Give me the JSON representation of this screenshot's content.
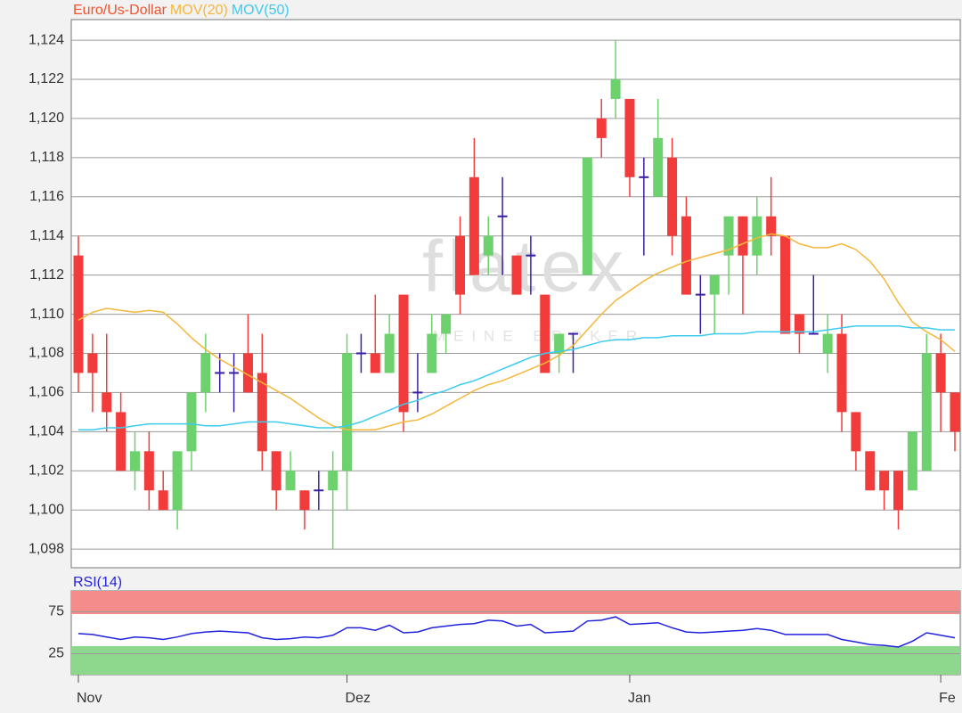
{
  "chart_data": [
    {
      "type": "candlestick",
      "name": "Euro/Us-Dollar",
      "name_color": "#f0522e",
      "watermark": "flatex",
      "watermark_sub": "MEINE BROKER",
      "categories": [
        "Nov",
        null,
        null,
        null,
        null,
        null,
        null,
        null,
        null,
        null,
        null,
        null,
        null,
        null,
        null,
        null,
        null,
        null,
        null,
        "Dez",
        null,
        null,
        null,
        null,
        null,
        null,
        null,
        null,
        null,
        null,
        null,
        null,
        null,
        null,
        null,
        null,
        null,
        null,
        null,
        "Jan",
        null,
        null,
        null,
        null,
        null,
        null,
        null,
        null,
        null,
        null,
        null,
        null,
        null,
        null,
        null,
        null,
        null,
        null,
        null,
        null,
        null,
        "Fe",
        null
      ],
      "open": [
        1.113,
        1.108,
        1.106,
        1.105,
        1.102,
        1.103,
        1.101,
        1.1,
        1.103,
        1.106,
        1.107,
        1.107,
        1.108,
        1.107,
        1.103,
        1.101,
        1.101,
        1.101,
        1.101,
        1.102,
        1.108,
        1.108,
        1.107,
        1.111,
        1.106,
        1.107,
        1.109,
        1.114,
        1.117,
        1.113,
        1.115,
        1.113,
        1.113,
        1.111,
        1.108,
        1.109,
        1.112,
        1.12,
        1.121,
        1.121,
        1.117,
        1.116,
        1.118,
        1.115,
        1.111,
        1.111,
        1.113,
        1.115,
        1.113,
        1.115,
        1.114,
        1.11,
        1.109,
        1.108,
        1.109,
        1.105,
        1.103,
        1.102,
        1.102,
        1.101,
        1.102,
        1.108,
        1.106
      ],
      "high": [
        1.114,
        1.109,
        1.109,
        1.106,
        1.104,
        1.104,
        1.102,
        1.103,
        1.106,
        1.109,
        1.108,
        1.108,
        1.11,
        1.109,
        1.103,
        1.103,
        1.101,
        1.102,
        1.103,
        1.109,
        1.109,
        1.111,
        1.11,
        1.111,
        1.108,
        1.11,
        1.11,
        1.115,
        1.119,
        1.115,
        1.117,
        1.113,
        1.114,
        1.111,
        1.109,
        1.109,
        1.118,
        1.121,
        1.124,
        1.121,
        1.118,
        1.121,
        1.119,
        1.116,
        1.112,
        1.112,
        1.115,
        1.115,
        1.116,
        1.117,
        1.114,
        1.11,
        1.112,
        1.11,
        1.11,
        1.105,
        1.103,
        1.102,
        1.102,
        1.104,
        1.109,
        1.109,
        1.106
      ],
      "low": [
        1.106,
        1.105,
        1.104,
        1.102,
        1.101,
        1.1,
        1.1,
        1.099,
        1.102,
        1.105,
        1.106,
        1.105,
        1.106,
        1.102,
        1.1,
        1.101,
        1.099,
        1.1,
        1.098,
        1.1,
        1.107,
        1.107,
        1.107,
        1.104,
        1.105,
        1.107,
        1.108,
        1.11,
        1.112,
        1.112,
        1.112,
        1.111,
        1.111,
        1.107,
        1.107,
        1.107,
        1.112,
        1.118,
        1.12,
        1.116,
        1.113,
        1.116,
        1.113,
        1.111,
        1.109,
        1.109,
        1.111,
        1.11,
        1.112,
        1.113,
        1.109,
        1.108,
        1.109,
        1.107,
        1.104,
        1.102,
        1.101,
        1.1,
        1.099,
        1.101,
        1.102,
        1.104,
        1.103
      ],
      "close": [
        1.107,
        1.107,
        1.105,
        1.102,
        1.103,
        1.101,
        1.1,
        1.103,
        1.106,
        1.108,
        1.107,
        1.107,
        1.106,
        1.103,
        1.101,
        1.102,
        1.1,
        1.101,
        1.102,
        1.108,
        1.108,
        1.107,
        1.109,
        1.105,
        1.106,
        1.109,
        1.11,
        1.111,
        1.112,
        1.114,
        1.115,
        1.111,
        1.113,
        1.107,
        1.109,
        1.109,
        1.118,
        1.119,
        1.122,
        1.117,
        1.117,
        1.119,
        1.114,
        1.111,
        1.111,
        1.112,
        1.115,
        1.113,
        1.115,
        1.114,
        1.109,
        1.109,
        1.109,
        1.109,
        1.105,
        1.103,
        1.101,
        1.101,
        1.1,
        1.104,
        1.108,
        1.106,
        1.104
      ],
      "colors": {
        "up": "#6dd26d",
        "down": "#f23c3c",
        "flat": "#3b1fa3"
      },
      "overlays": [
        {
          "name": "MOV(20)",
          "color": "#f4b73a",
          "values": [
            1.1097,
            1.1101,
            1.1103,
            1.1102,
            1.1101,
            1.1102,
            1.1101,
            1.1095,
            1.1088,
            1.1082,
            1.1077,
            1.1073,
            1.1069,
            1.1065,
            1.1061,
            1.1057,
            1.1052,
            1.1047,
            1.1043,
            1.1041,
            1.1041,
            1.1041,
            1.1043,
            1.1045,
            1.1046,
            1.1049,
            1.1053,
            1.1057,
            1.1061,
            1.1064,
            1.1066,
            1.1069,
            1.1072,
            1.1075,
            1.1079,
            1.1084,
            1.1092,
            1.11,
            1.1107,
            1.1112,
            1.1117,
            1.1121,
            1.1124,
            1.1127,
            1.1129,
            1.1131,
            1.1133,
            1.1136,
            1.1139,
            1.1141,
            1.114,
            1.1136,
            1.1134,
            1.1134,
            1.1136,
            1.1133,
            1.1127,
            1.1118,
            1.1106,
            1.1096,
            1.1091,
            1.1087,
            1.1081
          ]
        },
        {
          "name": "MOV(50)",
          "color": "#3ccbee",
          "values": [
            1.1041,
            1.1041,
            1.1042,
            1.1042,
            1.1043,
            1.1044,
            1.1044,
            1.1044,
            1.1044,
            1.1043,
            1.1043,
            1.1044,
            1.1045,
            1.1045,
            1.1045,
            1.1044,
            1.1043,
            1.1042,
            1.1042,
            1.1043,
            1.1045,
            1.1048,
            1.1051,
            1.1054,
            1.1056,
            1.1059,
            1.1061,
            1.1064,
            1.1066,
            1.1069,
            1.1072,
            1.1075,
            1.1078,
            1.108,
            1.1081,
            1.1082,
            1.1084,
            1.1086,
            1.1087,
            1.1087,
            1.1088,
            1.1088,
            1.1089,
            1.1089,
            1.1089,
            1.109,
            1.109,
            1.109,
            1.1091,
            1.1091,
            1.1091,
            1.1091,
            1.1091,
            1.1092,
            1.1093,
            1.1094,
            1.1094,
            1.1094,
            1.1094,
            1.1093,
            1.1093,
            1.1092,
            1.1092
          ]
        }
      ],
      "ylim": [
        1.09705,
        1.12505
      ],
      "yticks": [
        {
          "value": 1.098,
          "label": "1,098"
        },
        {
          "value": 1.1,
          "label": "1,100"
        },
        {
          "value": 1.102,
          "label": "1,102"
        },
        {
          "value": 1.104,
          "label": "1,104"
        },
        {
          "value": 1.106,
          "label": "1,106"
        },
        {
          "value": 1.108,
          "label": "1,108"
        },
        {
          "value": 1.11,
          "label": "1,110"
        },
        {
          "value": 1.112,
          "label": "1,112"
        },
        {
          "value": 1.114,
          "label": "1,114"
        },
        {
          "value": 1.116,
          "label": "1,116"
        },
        {
          "value": 1.118,
          "label": "1,118"
        },
        {
          "value": 1.12,
          "label": "1,120"
        },
        {
          "value": 1.122,
          "label": "1,122"
        },
        {
          "value": 1.124,
          "label": "1,124"
        }
      ],
      "grid": true
    },
    {
      "type": "line",
      "series": [
        {
          "name": "RSI(14)",
          "color": "#2222dd",
          "values": [
            49,
            48,
            45,
            42,
            45,
            44,
            42,
            45,
            49,
            51,
            52,
            51,
            50,
            44,
            42,
            43,
            45,
            44,
            47,
            56,
            56,
            53,
            59,
            50,
            51,
            56,
            58,
            60,
            61,
            65,
            64,
            58,
            60,
            50,
            51,
            52,
            64,
            65,
            69,
            60,
            61,
            62,
            56,
            51,
            50,
            51,
            52,
            53,
            55,
            53,
            48,
            48,
            48,
            48,
            42,
            39,
            36,
            35,
            33,
            40,
            50,
            47,
            44
          ]
        }
      ],
      "ylim": [
        0,
        100
      ],
      "yticks": [
        25,
        75
      ],
      "grid": true
    }
  ]
}
